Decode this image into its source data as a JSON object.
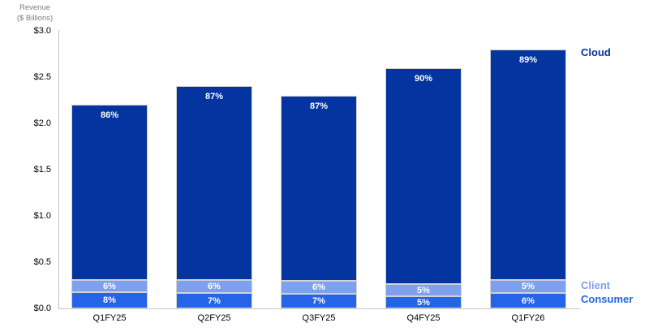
{
  "axis_header": {
    "line1": "Revenue",
    "line2": "($ Billions)"
  },
  "chart_data": {
    "type": "bar",
    "variant": "stacked",
    "title": "",
    "xlabel": "",
    "ylabel": "Revenue ($ Billions)",
    "categories": [
      "Q1FY25",
      "Q2FY25",
      "Q3FY25",
      "Q4FY25",
      "Q1FY26"
    ],
    "totals_billions": [
      2.2,
      2.4,
      2.3,
      2.6,
      2.8
    ],
    "stack_order": "bottom-to-top",
    "series": [
      {
        "name": "Consumer",
        "color": "#2563e8",
        "pct": [
          8,
          7,
          7,
          5,
          6
        ],
        "labels": [
          "8%",
          "7%",
          "7%",
          "5%",
          "6%"
        ]
      },
      {
        "name": "Client",
        "color": "#7da1ee",
        "pct": [
          6,
          6,
          6,
          5,
          5
        ],
        "labels": [
          "6%",
          "6%",
          "6%",
          "5%",
          "5%"
        ]
      },
      {
        "name": "Cloud",
        "color": "#0334a0",
        "pct": [
          86,
          87,
          87,
          90,
          89
        ],
        "labels": [
          "86%",
          "87%",
          "87%",
          "90%",
          "89%"
        ]
      }
    ],
    "y_ticks": [
      "$3.0",
      "$2.5",
      "$2.0",
      "$1.5",
      "$1.0",
      "$0.5",
      "$0.0"
    ],
    "y_tick_values": [
      3.0,
      2.5,
      2.0,
      1.5,
      1.0,
      0.5,
      0.0
    ],
    "ylim": [
      0,
      3.0
    ],
    "grid": false,
    "legend_position": "right",
    "legend": [
      {
        "label": "Cloud",
        "color": "#0334a0"
      },
      {
        "label": "Client",
        "color": "#7da1ee"
      },
      {
        "label": "Consumer",
        "color": "#2563e8"
      }
    ],
    "axis_line_color": "#c6c6c6",
    "tick_label_color": "#000000",
    "bar_label_color": "#ffffff",
    "bar_border_color": "#d2d2d2"
  }
}
